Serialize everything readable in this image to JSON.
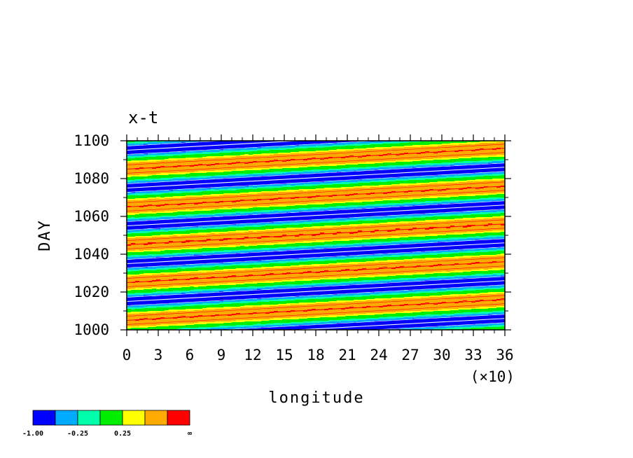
{
  "chart_data": {
    "type": "heatmap",
    "title": "x-t",
    "xlabel": "longitude",
    "ylabel": "DAY",
    "x_scale_note": "(×10)",
    "xlim": [
      0,
      36
    ],
    "ylim": [
      1000,
      1100
    ],
    "x_ticks": [
      "0",
      "3",
      "6",
      "9",
      "12",
      "15",
      "18",
      "21",
      "24",
      "27",
      "30",
      "33",
      "36"
    ],
    "y_ticks": [
      "1000",
      "1020",
      "1040",
      "1060",
      "1080",
      "1100"
    ],
    "field": {
      "description_units": "x in longitude/10, y in DAY",
      "wave_period_days": 20,
      "band_slope_days_per_x_unit": 0.306,
      "phase_at_origin_day": 1000
    },
    "colorbar": {
      "levels": [
        "-1.00",
        "-0.25",
        "0.25",
        "∞"
      ],
      "colors": [
        "#0000ff",
        "#00aaff",
        "#00ffaa",
        "#00ee00",
        "#ffff00",
        "#ffaa00",
        "#ff0000"
      ],
      "placement": "bottom-left"
    },
    "contours": {
      "positive_color": "#ff0000",
      "negative_color": "#ffffff"
    }
  }
}
